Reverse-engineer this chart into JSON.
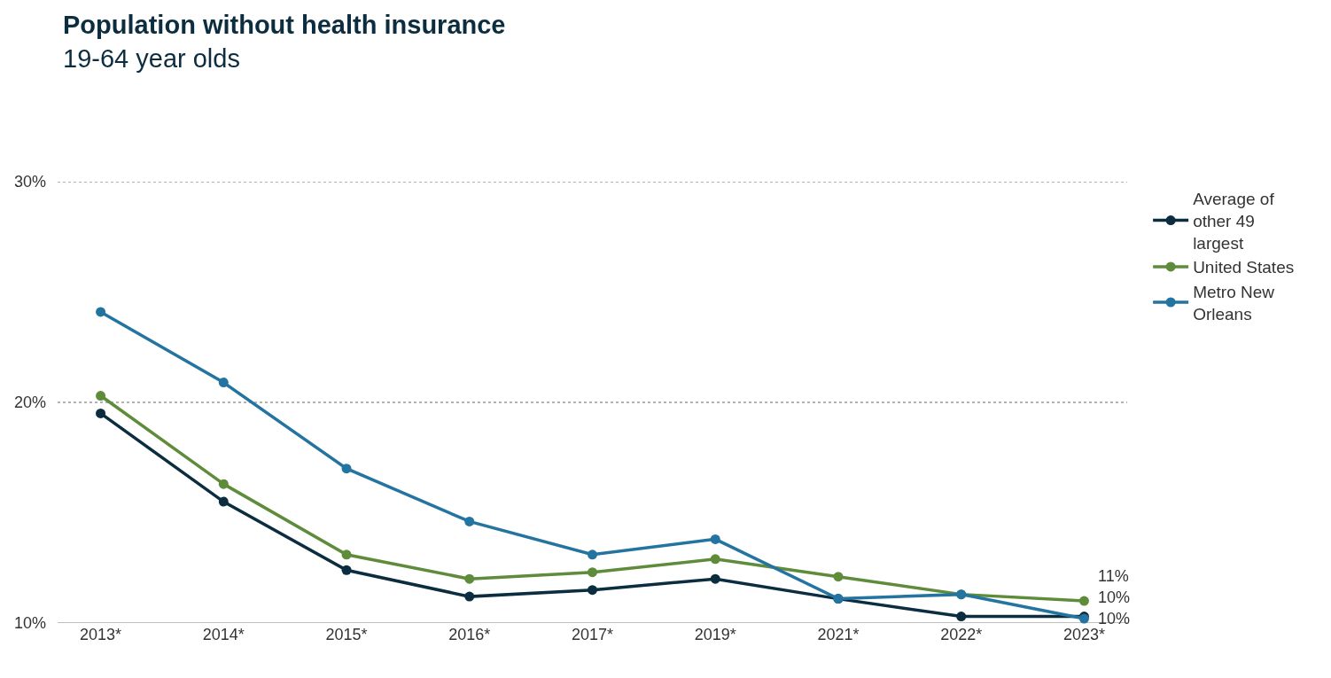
{
  "chart_data": {
    "type": "line",
    "title": "Population without health insurance",
    "subtitle": "19-64 year olds",
    "categories": [
      "2013*",
      "2014*",
      "2015*",
      "2016*",
      "2017*",
      "2019*",
      "2021*",
      "2022*",
      "2023*"
    ],
    "series": [
      {
        "name": "Average of other 49 largest",
        "color": "#0b2d3f",
        "values": [
          19.5,
          15.5,
          12.4,
          11.2,
          11.5,
          12.0,
          11.1,
          10.3,
          10.3
        ]
      },
      {
        "name": "United States",
        "color": "#5e8c3a",
        "values": [
          20.3,
          16.3,
          13.1,
          12.0,
          12.3,
          12.9,
          12.1,
          11.3,
          11.0
        ]
      },
      {
        "name": "Metro New Orleans",
        "color": "#2374a0",
        "values": [
          24.1,
          20.9,
          17.0,
          14.6,
          13.1,
          13.8,
          11.1,
          11.3,
          10.2
        ]
      }
    ],
    "annotations": [
      {
        "text": "11%",
        "x": "2023*",
        "y": 11.0
      },
      {
        "text": "10%",
        "x": "2023*",
        "y": 10.3
      },
      {
        "text": "10%",
        "x": "2023*",
        "y": 10.2
      }
    ],
    "ylim": [
      10,
      30
    ],
    "yticks": [
      {
        "value": 10,
        "label": "10%"
      },
      {
        "value": 20,
        "label": "20%"
      },
      {
        "value": 30,
        "label": "30%"
      }
    ],
    "grid": "y",
    "legend": "top right",
    "marker": "circle",
    "line_style": "solid"
  }
}
